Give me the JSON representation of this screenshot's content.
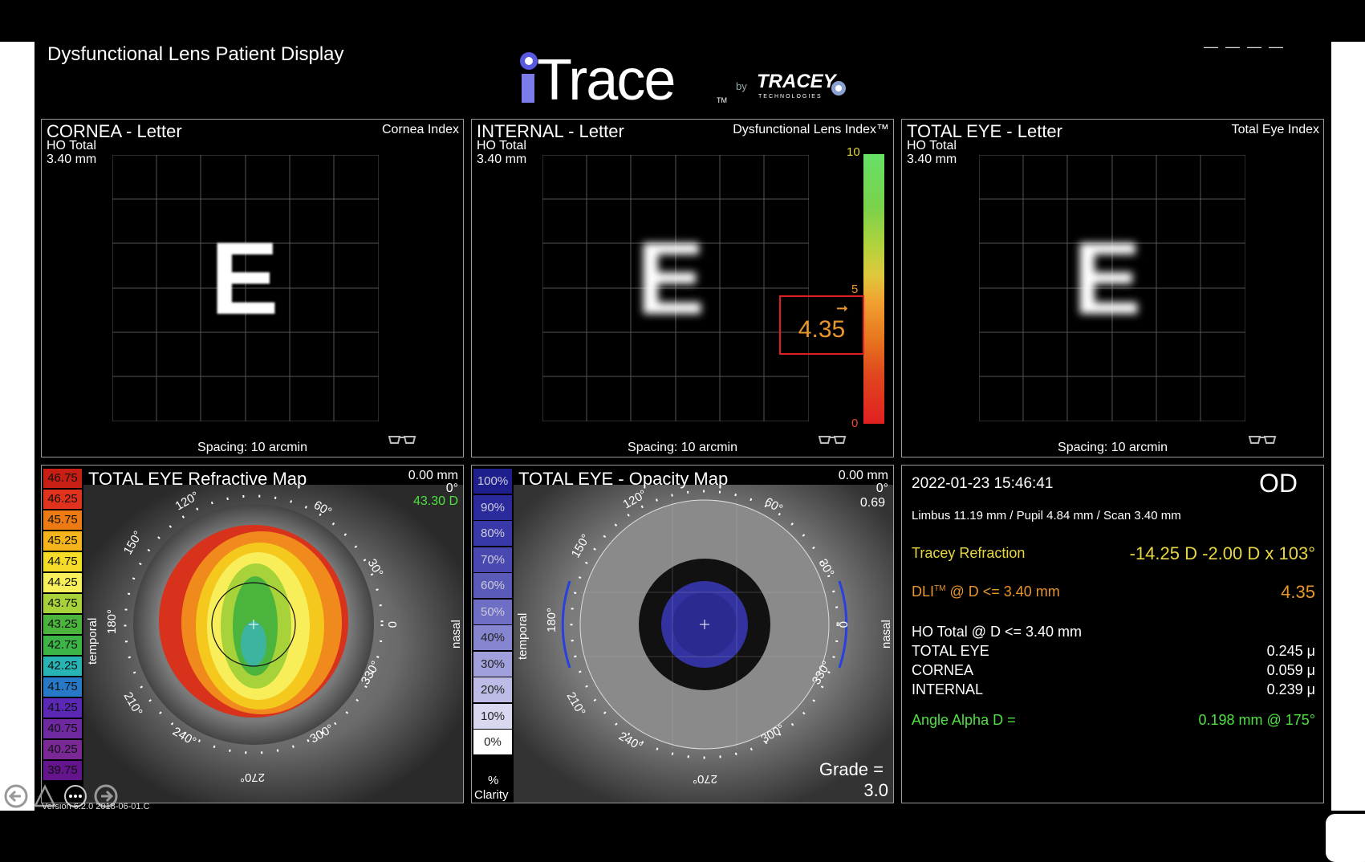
{
  "app": {
    "title": "Dysfunctional Lens Patient Display",
    "logo": "iTrace",
    "logo_tm": "TM",
    "by": "by",
    "company": "TRACEY",
    "company_sub": "TECHNOLOGIES",
    "version": "Version 6.2.0 2018-06-01.C"
  },
  "panels": {
    "cornea_letter": {
      "title": "CORNEA - Letter",
      "sub1": "HO Total",
      "sub2": "3.40 mm",
      "index_label": "Cornea Index",
      "spacing": "Spacing:  10 arcmin",
      "letter": "E"
    },
    "internal_letter": {
      "title": "INTERNAL - Letter",
      "sub1": "HO Total",
      "sub2": "3.40 mm",
      "index_label": "Dysfunctional Lens Index™",
      "spacing": "Spacing:  10 arcmin",
      "letter": "E",
      "scale_top": "10",
      "scale_mid": "5",
      "scale_bottom": "0",
      "dli_value": "4.35",
      "dli_fraction": 0.435
    },
    "total_letter": {
      "title": "TOTAL EYE - Letter",
      "sub1": "HO Total",
      "sub2": "3.40 mm",
      "index_label": "Total Eye Index",
      "spacing": "Spacing:  10 arcmin",
      "letter": "E"
    },
    "refractive_map": {
      "title": "TOTAL EYE  Refractive Map",
      "readout_mm": "0.00 mm",
      "readout_deg": "0°",
      "readout_d": "43.30 D",
      "temporal": "temporal",
      "nasal": "nasal",
      "legend": [
        "46.75",
        "46.25",
        "45.75",
        "45.25",
        "44.75",
        "44.25",
        "43.75",
        "43.25",
        "42.75",
        "42.25",
        "41.75",
        "41.25",
        "40.75",
        "40.25",
        "39.75"
      ],
      "legend_colors": [
        "#c81e14",
        "#e0321c",
        "#ee7a14",
        "#f5b41c",
        "#f5dc28",
        "#f8f05a",
        "#a8d23a",
        "#4ab43c",
        "#3cb446",
        "#28b4b4",
        "#2878c8",
        "#5a28b4",
        "#6e28a0",
        "#7a2896",
        "#64148c"
      ],
      "angles": {
        "a0": "0",
        "a30": "30°",
        "a60": "60°",
        "a120": "120°",
        "a150": "150°",
        "a180": "180°",
        "a210": "210°",
        "a240": "240°",
        "a270": "270°",
        "a300": "300°",
        "a330": "330°"
      }
    },
    "opacity_map": {
      "title": "TOTAL EYE - Opacity Map",
      "readout_mm": "0.00 mm",
      "readout_deg": "0°",
      "readout_val": "0.69",
      "temporal": "temporal",
      "nasal": "nasal",
      "legend": [
        "100%",
        "90%",
        "80%",
        "70%",
        "60%",
        "50%",
        "40%",
        "30%",
        "20%",
        "10%",
        "0%"
      ],
      "legend_colors": [
        "#1e1e8c",
        "#2a2a9c",
        "#3838a8",
        "#4848b0",
        "#5a5ab8",
        "#6e6ec4",
        "#8686d0",
        "#a0a0dc",
        "#bcbce6",
        "#d8d8f0",
        "#ffffff"
      ],
      "legend_unit": "%",
      "legend_caption": "Clarity",
      "grade_label": "Grade =",
      "grade_value": "3.0",
      "angles": {
        "a0": "0",
        "a30": "30°",
        "a60": "60°",
        "a120": "120°",
        "a150": "150°",
        "a180": "180°",
        "a210": "210°",
        "a240": "240°",
        "a270": "270°",
        "a300": "300°",
        "a330": "330°"
      }
    }
  },
  "info": {
    "datetime": "2022-01-23   15:46:41",
    "eye": "OD",
    "measures": "Limbus 11.19 mm  /  Pupil 4.84 mm  /  Scan 3.40 mm",
    "refraction_label": "Tracey Refraction",
    "refraction_value": "-14.25 D -2.00 D x 103°",
    "dli_label_pre": "DLI",
    "dli_tm": "TM",
    "dli_label_post": " @ D <= 3.40 mm",
    "dli_value": "4.35",
    "ho_header": "HO Total @ D <= 3.40 mm",
    "rows": [
      {
        "label": "TOTAL EYE",
        "value": "0.245 μ"
      },
      {
        "label": "CORNEA",
        "value": "0.059 μ"
      },
      {
        "label": "INTERNAL",
        "value": "0.239 μ"
      }
    ],
    "alpha_label": "Angle Alpha  D =",
    "alpha_value": "0.198 mm @ 175°"
  },
  "colors": {
    "yellow": "#e8d640",
    "orange": "#e8962c",
    "green": "#4ee040",
    "dli_box": "#e02020"
  },
  "icons": [
    "back-arrow-icon",
    "warning-icon",
    "more-icon",
    "forward-arrow-icon",
    "glasses-icon"
  ]
}
